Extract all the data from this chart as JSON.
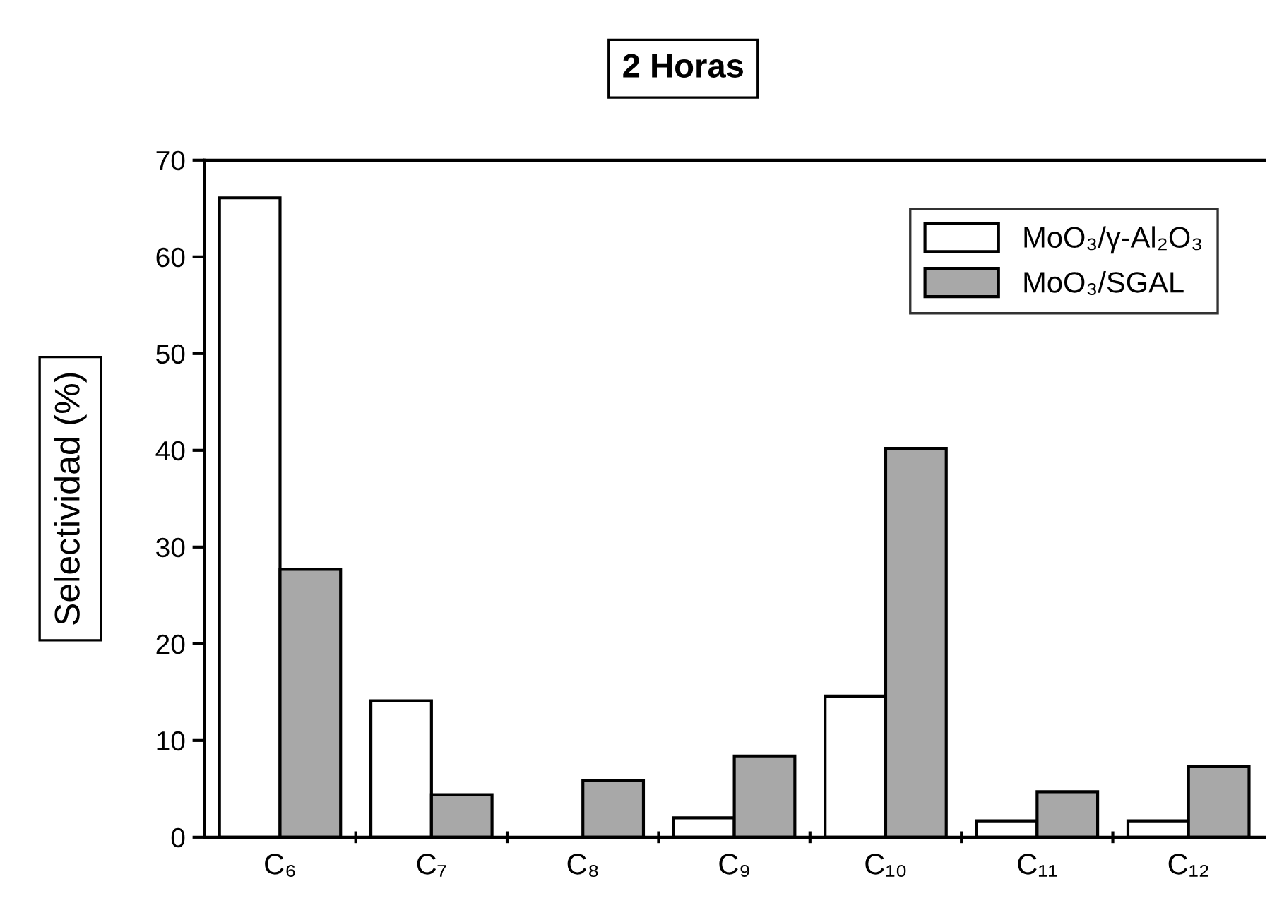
{
  "chart_data": {
    "type": "bar",
    "title": "2 Horas",
    "ylabel": "Selectividad (%)",
    "categories": [
      "C₆",
      "C₇",
      "C₈",
      "C₉",
      "C₁₀",
      "C₁₁",
      "C₁₂"
    ],
    "series": [
      {
        "name": "MoO₃/γ-Al₂O₃",
        "color": "#ffffff",
        "values": [
          66.1,
          14.1,
          null,
          2.0,
          14.6,
          1.7,
          1.7
        ]
      },
      {
        "name": "MoO₃/SGAL",
        "color": "#a8a8a8",
        "values": [
          27.7,
          4.4,
          5.9,
          8.4,
          40.2,
          4.7,
          7.3
        ]
      }
    ],
    "ylim": [
      0,
      70
    ],
    "yticks": [
      0,
      10,
      20,
      30,
      40,
      50,
      60,
      70
    ],
    "grid": false,
    "legend": "top right"
  }
}
